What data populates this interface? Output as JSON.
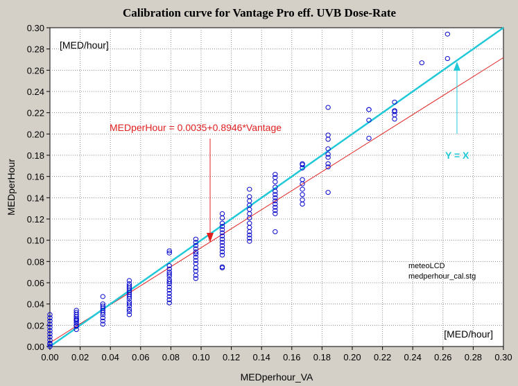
{
  "chart_data": {
    "type": "scatter",
    "title": "Calibration curve for Vantage Pro eff. UVB Dose-Rate",
    "xlabel": "MEDperhour_VA",
    "ylabel": "MEDperHour",
    "xlim": [
      0,
      0.3
    ],
    "ylim": [
      0,
      0.3
    ],
    "xticks": [
      "0.00",
      "0.02",
      "0.04",
      "0.06",
      "0.08",
      "0.10",
      "0.12",
      "0.14",
      "0.16",
      "0.18",
      "0.20",
      "0.22",
      "0.24",
      "0.26",
      "0.28",
      "0.30"
    ],
    "yticks": [
      "0.00",
      "0.02",
      "0.04",
      "0.06",
      "0.08",
      "0.10",
      "0.12",
      "0.14",
      "0.16",
      "0.18",
      "0.20",
      "0.22",
      "0.24",
      "0.26",
      "0.28",
      "0.30"
    ],
    "grid": true,
    "annotations": {
      "y_unit": "[MED/hour]",
      "x_unit": "[MED/hour]",
      "fit_equation": "MEDperHour = 0.0035+0.8946*Vantage",
      "identity_label": "Y = X",
      "source_line1": "meteoLCD",
      "source_line2": "medperhour_cal.stg"
    },
    "fit_line": {
      "intercept": 0.0035,
      "slope": 0.8946,
      "color": "#e02020"
    },
    "identity_line": {
      "intercept": 0.0,
      "slope": 1.0,
      "color": "#20c8d8"
    },
    "marker_color": "#0000cc",
    "series": [
      {
        "x": [
          0,
          0,
          0,
          0,
          0,
          0,
          0,
          0,
          0,
          0,
          0,
          0,
          0.0175,
          0.0175,
          0.0175,
          0.0175,
          0.0175,
          0.0175,
          0.0175,
          0.0175,
          0.0175,
          0.0175,
          0.0175,
          0.035,
          0.035,
          0.035,
          0.035,
          0.035,
          0.035,
          0.035,
          0.035,
          0.035,
          0.035,
          0.0525,
          0.0525,
          0.0525,
          0.0525,
          0.0525,
          0.0525,
          0.0525,
          0.0525,
          0.0525,
          0.0525,
          0.0525,
          0.0525,
          0.0525,
          0.0525,
          0.0525,
          0.079,
          0.079,
          0.079,
          0.079,
          0.079,
          0.079,
          0.079,
          0.079,
          0.079,
          0.079,
          0.079,
          0.079,
          0.079,
          0.079,
          0.079,
          0.079,
          0.0965,
          0.0965,
          0.0965,
          0.0965,
          0.0965,
          0.0965,
          0.0965,
          0.0965,
          0.0965,
          0.0965,
          0.0965,
          0.0965,
          0.0965,
          0.114,
          0.114,
          0.114,
          0.114,
          0.114,
          0.114,
          0.114,
          0.114,
          0.114,
          0.114,
          0.114,
          0.114,
          0.114,
          0.114,
          0.114,
          0.132,
          0.132,
          0.132,
          0.132,
          0.132,
          0.132,
          0.132,
          0.132,
          0.132,
          0.132,
          0.132,
          0.132,
          0.132,
          0.149,
          0.149,
          0.149,
          0.149,
          0.149,
          0.149,
          0.149,
          0.149,
          0.149,
          0.149,
          0.149,
          0.149,
          0.149,
          0.167,
          0.167,
          0.167,
          0.167,
          0.167,
          0.167,
          0.167,
          0.167,
          0.167,
          0.184,
          0.184,
          0.184,
          0.184,
          0.184,
          0.184,
          0.184,
          0.184,
          0.184,
          0.211,
          0.211,
          0.211,
          0.211,
          0.228,
          0.228,
          0.228,
          0.228,
          0.228,
          0.246,
          0.263,
          0.263
        ],
        "y": [
          0.0,
          0.003,
          0.006,
          0.009,
          0.012,
          0.015,
          0.018,
          0.021,
          0.024,
          0.027,
          0.03,
          0.002,
          0.016,
          0.019,
          0.022,
          0.024,
          0.026,
          0.028,
          0.03,
          0.032,
          0.034,
          0.02,
          0.025,
          0.021,
          0.024,
          0.027,
          0.03,
          0.032,
          0.034,
          0.036,
          0.038,
          0.04,
          0.047,
          0.03,
          0.033,
          0.035,
          0.038,
          0.04,
          0.042,
          0.045,
          0.047,
          0.049,
          0.051,
          0.053,
          0.055,
          0.057,
          0.059,
          0.062,
          0.041,
          0.044,
          0.047,
          0.05,
          0.053,
          0.056,
          0.059,
          0.061,
          0.063,
          0.066,
          0.068,
          0.07,
          0.073,
          0.076,
          0.088,
          0.09,
          0.064,
          0.067,
          0.071,
          0.074,
          0.078,
          0.081,
          0.084,
          0.087,
          0.089,
          0.092,
          0.095,
          0.098,
          0.101,
          0.074,
          0.075,
          0.086,
          0.089,
          0.092,
          0.095,
          0.098,
          0.101,
          0.104,
          0.107,
          0.11,
          0.113,
          0.116,
          0.121,
          0.125,
          0.099,
          0.102,
          0.105,
          0.108,
          0.112,
          0.116,
          0.121,
          0.125,
          0.129,
          0.133,
          0.137,
          0.141,
          0.148,
          0.108,
          0.125,
          0.128,
          0.131,
          0.134,
          0.137,
          0.14,
          0.143,
          0.146,
          0.15,
          0.155,
          0.159,
          0.162,
          0.134,
          0.138,
          0.143,
          0.148,
          0.153,
          0.157,
          0.168,
          0.171,
          0.172,
          0.145,
          0.169,
          0.172,
          0.178,
          0.181,
          0.186,
          0.195,
          0.199,
          0.225,
          0.196,
          0.213,
          0.223,
          0.223,
          0.214,
          0.218,
          0.221,
          0.222,
          0.23,
          0.267,
          0.271,
          0.294
        ]
      }
    ]
  }
}
